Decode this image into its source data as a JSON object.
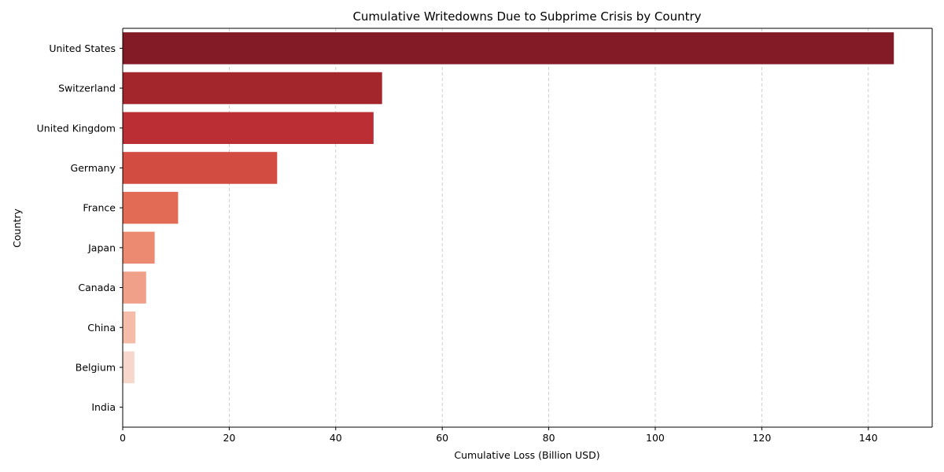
{
  "chart_data": {
    "type": "bar",
    "orientation": "horizontal",
    "title": "Cumulative Writedowns Due to Subprime Crisis by Country",
    "xlabel": "Cumulative Loss (Billion USD)",
    "ylabel": "Country",
    "categories": [
      "United States",
      "Switzerland",
      "United Kingdom",
      "Germany",
      "France",
      "Japan",
      "Canada",
      "China",
      "Belgium",
      "India"
    ],
    "values": [
      144.8,
      48.7,
      47.1,
      29.0,
      10.4,
      6.0,
      4.4,
      2.4,
      2.2,
      0.0
    ],
    "xlim": [
      0,
      152
    ],
    "xticks": [
      0,
      20,
      40,
      60,
      80,
      100,
      120,
      140
    ],
    "grid": "x-dashed",
    "colors": [
      "#831b26",
      "#a3262d",
      "#bb2e33",
      "#d34c42",
      "#e26b56",
      "#eb8a70",
      "#f0a089",
      "#f4bca9",
      "#f7d7cb",
      "#fbe9e2"
    ]
  }
}
